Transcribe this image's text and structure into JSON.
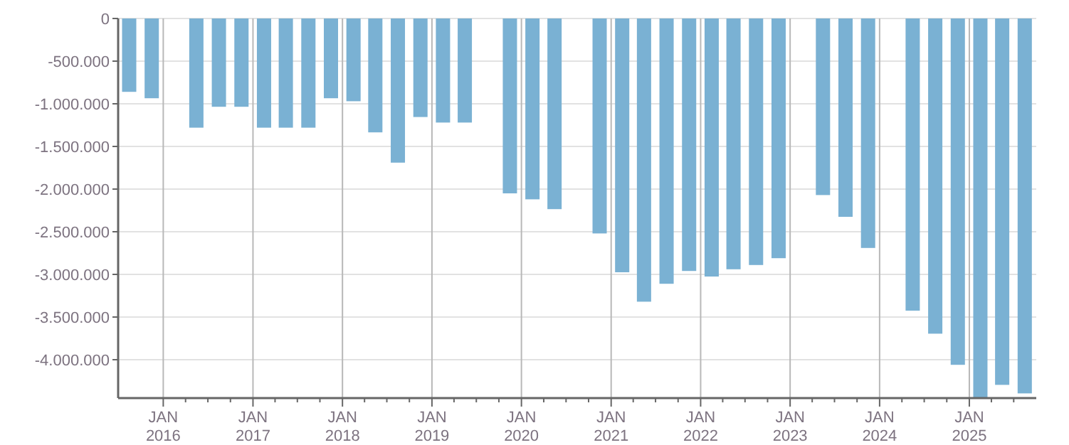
{
  "chart_data": {
    "type": "bar",
    "x": [
      "2015-08-15",
      "2015-11-15",
      "2016-05-15",
      "2016-08-15",
      "2016-11-15",
      "2017-02-15",
      "2017-05-15",
      "2017-08-15",
      "2017-11-15",
      "2018-02-15",
      "2018-05-15",
      "2018-08-15",
      "2018-11-15",
      "2019-02-15",
      "2019-05-15",
      "2019-11-15",
      "2020-02-15",
      "2020-05-15",
      "2020-11-15",
      "2021-02-15",
      "2021-05-15",
      "2021-08-15",
      "2021-11-15",
      "2022-02-15",
      "2022-05-15",
      "2022-08-15",
      "2022-11-15",
      "2023-05-15",
      "2023-08-15",
      "2023-11-15",
      "2024-05-15",
      "2024-08-15",
      "2024-11-15",
      "2025-02-15",
      "2025-05-15",
      "2025-08-15"
    ],
    "values": [
      -860000,
      -935000,
      -1280000,
      -1035000,
      -1035000,
      -1280000,
      -1280000,
      -1280000,
      -935000,
      -970000,
      -1335000,
      -1690000,
      -1155000,
      -1220000,
      -1220000,
      -2050000,
      -2120000,
      -2235000,
      -2520000,
      -2975000,
      -3320000,
      -3110000,
      -2960000,
      -3025000,
      -2940000,
      -2890000,
      -2810000,
      -2070000,
      -2325000,
      -2690000,
      -3425000,
      -3695000,
      -4060000,
      -4450000,
      -4295000,
      -4395000
    ],
    "color": "#7ab1d3",
    "xlim": [
      "2015-07-01",
      "2025-10-01"
    ],
    "xticks": [
      {
        "value": "2016-01-01",
        "label": "JAN 2016"
      },
      {
        "value": "2016-04-01",
        "label": null
      },
      {
        "value": "2016-07-01",
        "label": null
      },
      {
        "value": "2016-10-01",
        "label": null
      },
      {
        "value": "2017-01-01",
        "label": "JAN 2017"
      },
      {
        "value": "2017-04-01",
        "label": null
      },
      {
        "value": "2017-07-01",
        "label": null
      },
      {
        "value": "2017-10-01",
        "label": null
      },
      {
        "value": "2018-01-01",
        "label": "JAN 2018"
      },
      {
        "value": "2018-04-01",
        "label": null
      },
      {
        "value": "2018-07-01",
        "label": null
      },
      {
        "value": "2018-10-01",
        "label": null
      },
      {
        "value": "2019-01-01",
        "label": "JAN 2019"
      },
      {
        "value": "2019-04-01",
        "label": null
      },
      {
        "value": "2019-07-01",
        "label": null
      },
      {
        "value": "2019-10-01",
        "label": null
      },
      {
        "value": "2020-01-01",
        "label": "JAN 2020"
      },
      {
        "value": "2020-04-01",
        "label": null
      },
      {
        "value": "2020-07-01",
        "label": null
      },
      {
        "value": "2020-10-01",
        "label": null
      },
      {
        "value": "2021-01-01",
        "label": "JAN 2021"
      },
      {
        "value": "2021-04-01",
        "label": null
      },
      {
        "value": "2021-07-01",
        "label": null
      },
      {
        "value": "2021-10-01",
        "label": null
      },
      {
        "value": "2022-01-01",
        "label": "JAN 2022"
      },
      {
        "value": "2022-04-01",
        "label": null
      },
      {
        "value": "2022-07-01",
        "label": null
      },
      {
        "value": "2022-10-01",
        "label": null
      },
      {
        "value": "2023-01-01",
        "label": "JAN 2023"
      },
      {
        "value": "2023-04-01",
        "label": null
      },
      {
        "value": "2023-07-01",
        "label": null
      },
      {
        "value": "2023-10-01",
        "label": null
      },
      {
        "value": "2024-01-01",
        "label": "JAN 2024"
      },
      {
        "value": "2024-04-01",
        "label": null
      },
      {
        "value": "2024-07-01",
        "label": null
      },
      {
        "value": "2024-10-01",
        "label": null
      },
      {
        "value": "2025-01-01",
        "label": "JAN 2025"
      },
      {
        "value": "2025-04-01",
        "label": null
      },
      {
        "value": "2025-07-01",
        "label": null
      }
    ],
    "ylim": [
      -4450000,
      0
    ],
    "yticks": [
      0,
      {
        "value": -500000,
        "label": "-500.000"
      },
      {
        "value": -1000000,
        "label": "-1.000.000"
      },
      {
        "value": -1500000,
        "label": "-1.500.000"
      },
      {
        "value": -2000000,
        "label": "-2.000.000"
      },
      {
        "value": -2500000,
        "label": "-2.500.000"
      },
      {
        "value": -3000000,
        "label": "-3.000.000"
      },
      {
        "value": -3500000,
        "label": "-3.500.000"
      },
      {
        "value": -4000000,
        "label": "-4.000.000"
      }
    ],
    "grid": true
  }
}
